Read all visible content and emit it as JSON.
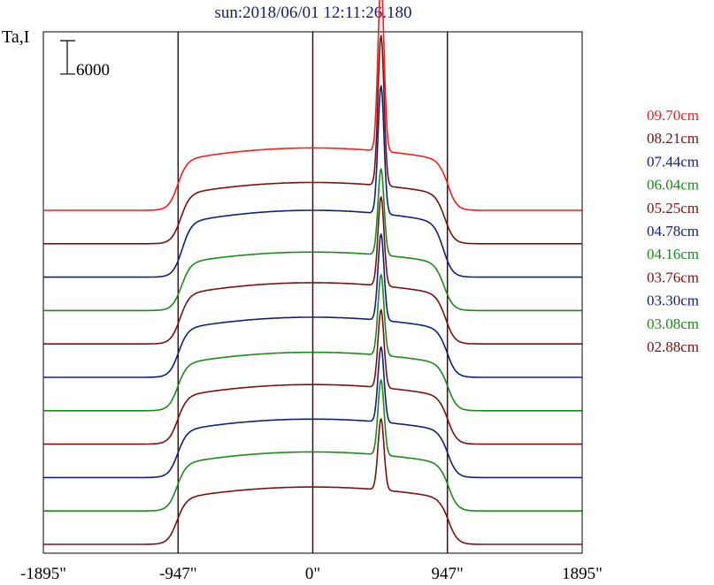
{
  "chart_data": {
    "type": "line",
    "title": "sun:2018/06/01 12:11:26.180",
    "ylabel": "Ta,I",
    "xlabel": "",
    "xlim": [
      -1895,
      1895
    ],
    "x_ticks": [
      {
        "value": -1895,
        "label": "-1895\""
      },
      {
        "value": -947,
        "label": "-947\""
      },
      {
        "value": 0,
        "label": "0\""
      },
      {
        "value": 947,
        "label": "947\""
      },
      {
        "value": 1895,
        "label": "1895\""
      }
    ],
    "vertical_lines": [
      -947,
      0,
      947
    ],
    "scale_bar": {
      "label": "6000",
      "value": 6000
    },
    "series_offset_step": 6000,
    "peak_position": 480,
    "series": [
      {
        "name": "09.70cm",
        "color": "#ff1a1a",
        "baseline": 60000,
        "plateau": 11200,
        "peak": 30500,
        "limb": 950
      },
      {
        "name": "08.21cm",
        "color": "#7a1010",
        "baseline": 54000,
        "plateau": 11000,
        "peak": 27000,
        "limb": 930
      },
      {
        "name": "07.44cm",
        "color": "#10207a",
        "baseline": 48000,
        "plateau": 12000,
        "peak": 23000,
        "limb": 920
      },
      {
        "name": "06.04cm",
        "color": "#1a8a1a",
        "baseline": 42000,
        "plateau": 10500,
        "peak": 15500,
        "limb": 925
      },
      {
        "name": "05.25cm",
        "color": "#7a1010",
        "baseline": 36000,
        "plateau": 11000,
        "peak": 16000,
        "limb": 935
      },
      {
        "name": "04.78cm",
        "color": "#10207a",
        "baseline": 30000,
        "plateau": 10800,
        "peak": 15500,
        "limb": 945
      },
      {
        "name": "04.16cm",
        "color": "#1a8a1a",
        "baseline": 24000,
        "plateau": 10500,
        "peak": 14500,
        "limb": 950
      },
      {
        "name": "03.76cm",
        "color": "#7a1010",
        "baseline": 18000,
        "plateau": 10700,
        "peak": 14000,
        "limb": 950
      },
      {
        "name": "03.30cm",
        "color": "#10207a",
        "baseline": 12000,
        "plateau": 10500,
        "peak": 13500,
        "limb": 950
      },
      {
        "name": "03.08cm",
        "color": "#1a8a1a",
        "baseline": 6000,
        "plateau": 10600,
        "peak": 13500,
        "limb": 955
      },
      {
        "name": "02.88cm",
        "color": "#7a1010",
        "baseline": 0,
        "plateau": 10300,
        "peak": 12800,
        "limb": 955
      }
    ]
  }
}
